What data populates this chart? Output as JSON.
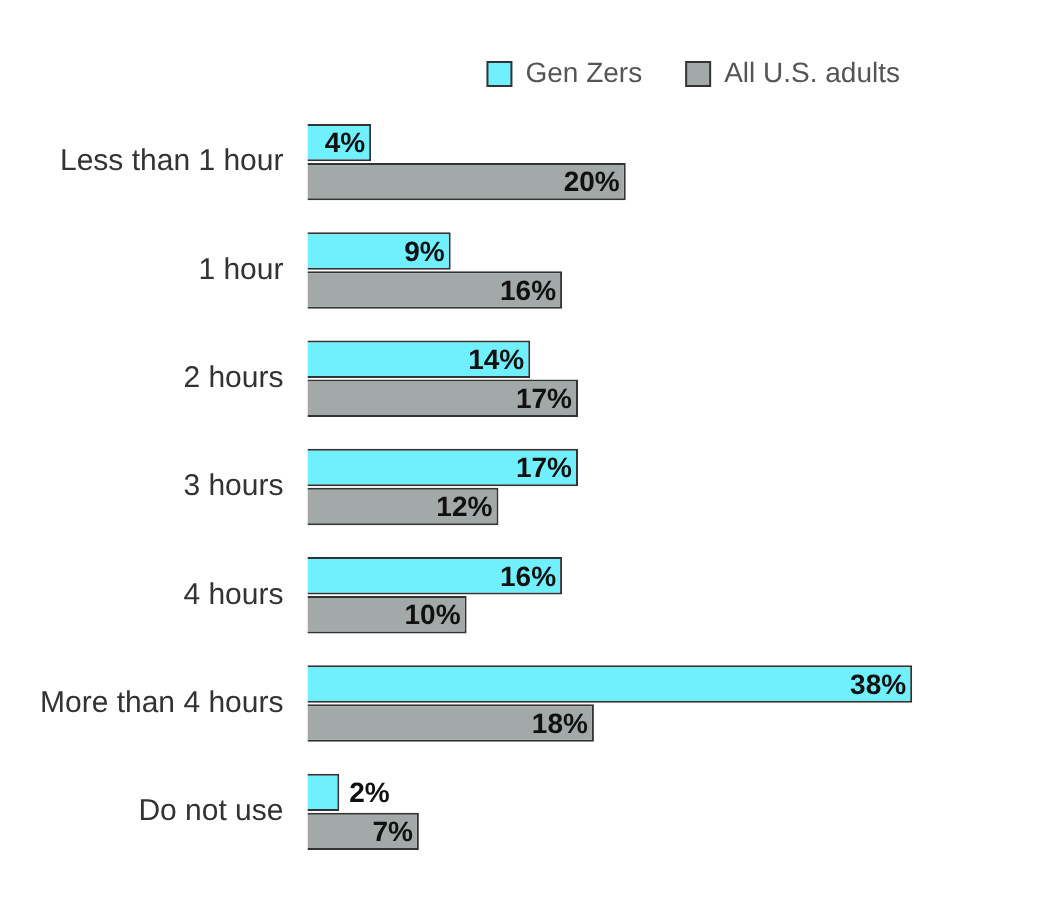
{
  "chart_data": {
    "type": "bar",
    "orientation": "horizontal",
    "categories": [
      "Less than 1 hour",
      "1 hour",
      "2 hours",
      "3 hours",
      "4 hours",
      "More than 4 hours",
      "Do not use"
    ],
    "series": [
      {
        "name": "Gen Zers",
        "color": "#6ff0fc",
        "values": [
          4,
          9,
          14,
          17,
          16,
          38,
          2
        ],
        "value_labels": [
          "4%",
          "9%",
          "14%",
          "17%",
          "16%",
          "38%",
          "2%"
        ]
      },
      {
        "name": "All U.S. adults",
        "color": "#a3a9a8",
        "values": [
          20,
          16,
          17,
          12,
          10,
          18,
          7
        ],
        "value_labels": [
          "20%",
          "16%",
          "17%",
          "12%",
          "10%",
          "18%",
          "7%"
        ]
      }
    ],
    "legend": "top right",
    "grid": false
  }
}
